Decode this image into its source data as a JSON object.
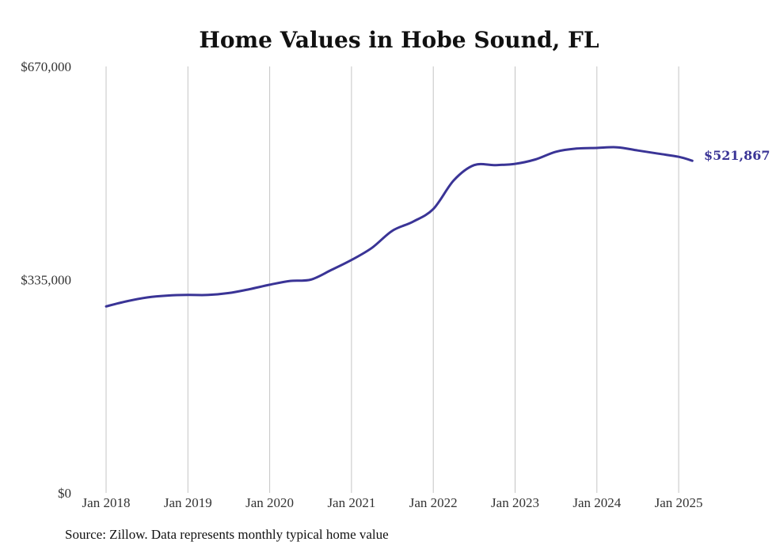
{
  "chart_data": {
    "type": "line",
    "title": "Home Values in Hobe Sound, FL",
    "xlabel": "",
    "ylabel": "",
    "ylim": [
      0,
      670000
    ],
    "y_ticks": [
      0,
      335000,
      670000
    ],
    "y_tick_labels": [
      "$0",
      "$335,000",
      "$670,000"
    ],
    "x_ticks": [
      "2018-01",
      "2019-01",
      "2020-01",
      "2021-01",
      "2022-01",
      "2023-01",
      "2024-01",
      "2025-01"
    ],
    "x_tick_labels": [
      "Jan 2018",
      "Jan 2019",
      "Jan 2020",
      "Jan 2021",
      "Jan 2022",
      "Jan 2023",
      "Jan 2024",
      "Jan 2025"
    ],
    "x_range": [
      "2018-01",
      "2025-03"
    ],
    "grid": "vertical",
    "line_color": "#3a3496",
    "end_label": "$521,867",
    "series": [
      {
        "x": [
          "2018-01",
          "2018-04",
          "2018-07",
          "2018-10",
          "2019-01",
          "2019-04",
          "2019-07",
          "2019-10",
          "2020-01",
          "2020-04",
          "2020-07",
          "2020-10",
          "2021-01",
          "2021-04",
          "2021-07",
          "2021-10",
          "2022-01",
          "2022-04",
          "2022-07",
          "2022-10",
          "2023-01",
          "2023-04",
          "2023-07",
          "2023-10",
          "2024-01",
          "2024-04",
          "2024-07",
          "2024-10",
          "2025-01",
          "2025-03"
        ],
        "values": [
          293000,
          301000,
          307000,
          310000,
          311000,
          311000,
          314000,
          320000,
          327000,
          333000,
          335000,
          350000,
          366000,
          385000,
          412000,
          426000,
          446000,
          491000,
          515000,
          515000,
          517000,
          524000,
          536000,
          541000,
          542000,
          543000,
          538000,
          533000,
          528000,
          521867
        ]
      }
    ]
  },
  "source_note": "Source: Zillow. Data represents monthly typical home value"
}
